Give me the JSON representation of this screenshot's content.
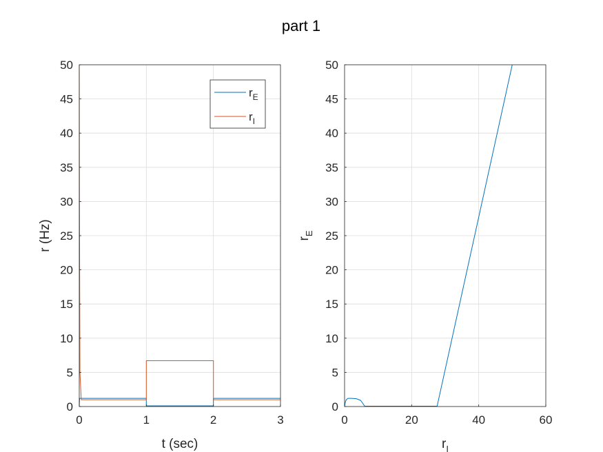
{
  "figure": {
    "title": "part 1"
  },
  "chart_data": [
    {
      "type": "line",
      "xlabel": "t (sec)",
      "ylabel": "r (Hz)",
      "xlim": [
        0,
        3
      ],
      "ylim": [
        0,
        50
      ],
      "xticks": [
        "0",
        "1",
        "2",
        "3"
      ],
      "yticks": [
        "0",
        "5",
        "10",
        "15",
        "20",
        "25",
        "30",
        "35",
        "40",
        "45",
        "50"
      ],
      "grid": true,
      "legend": {
        "placement": "top-right",
        "entries": [
          {
            "base": "r",
            "sub": "E"
          },
          {
            "base": "r",
            "sub": "I"
          }
        ]
      },
      "series": [
        {
          "name": "rE",
          "color": "#0072BD",
          "x": [
            0,
            0.005,
            0.02,
            0.5,
            1.0,
            1.0,
            1.5,
            2.0,
            2.0,
            2.5,
            3.0
          ],
          "y": [
            0,
            1.2,
            1.2,
            1.2,
            1.2,
            0.1,
            0.1,
            0.1,
            1.2,
            1.2,
            1.2
          ]
        },
        {
          "name": "rI",
          "color": "#D95319",
          "x": [
            0,
            0.003,
            0.01,
            0.03,
            0.5,
            1.0,
            1.0,
            1.5,
            2.0,
            2.0,
            2.5,
            3.0
          ],
          "y": [
            50,
            30,
            5,
            1.0,
            1.0,
            1.0,
            6.7,
            6.7,
            6.7,
            1.0,
            1.0,
            1.0
          ]
        }
      ]
    },
    {
      "type": "line",
      "xlabel": {
        "base": "r",
        "sub": "I"
      },
      "ylabel": {
        "base": "r",
        "sub": "E"
      },
      "xlim": [
        0,
        60
      ],
      "ylim": [
        0,
        50
      ],
      "xticks": [
        "0",
        "20",
        "40",
        "60"
      ],
      "yticks": [
        "0",
        "5",
        "10",
        "15",
        "20",
        "25",
        "30",
        "35",
        "40",
        "45",
        "50"
      ],
      "grid": true,
      "series": [
        {
          "color": "#0072BD",
          "x": [
            50,
            27.6,
            6.0,
            5.5,
            4.8,
            3.5,
            2.0,
            1.0,
            0.5,
            0.2,
            0.0
          ],
          "y": [
            50,
            0.05,
            0.05,
            0.4,
            0.9,
            1.15,
            1.2,
            1.2,
            1.0,
            0.6,
            0.0
          ]
        }
      ]
    }
  ]
}
